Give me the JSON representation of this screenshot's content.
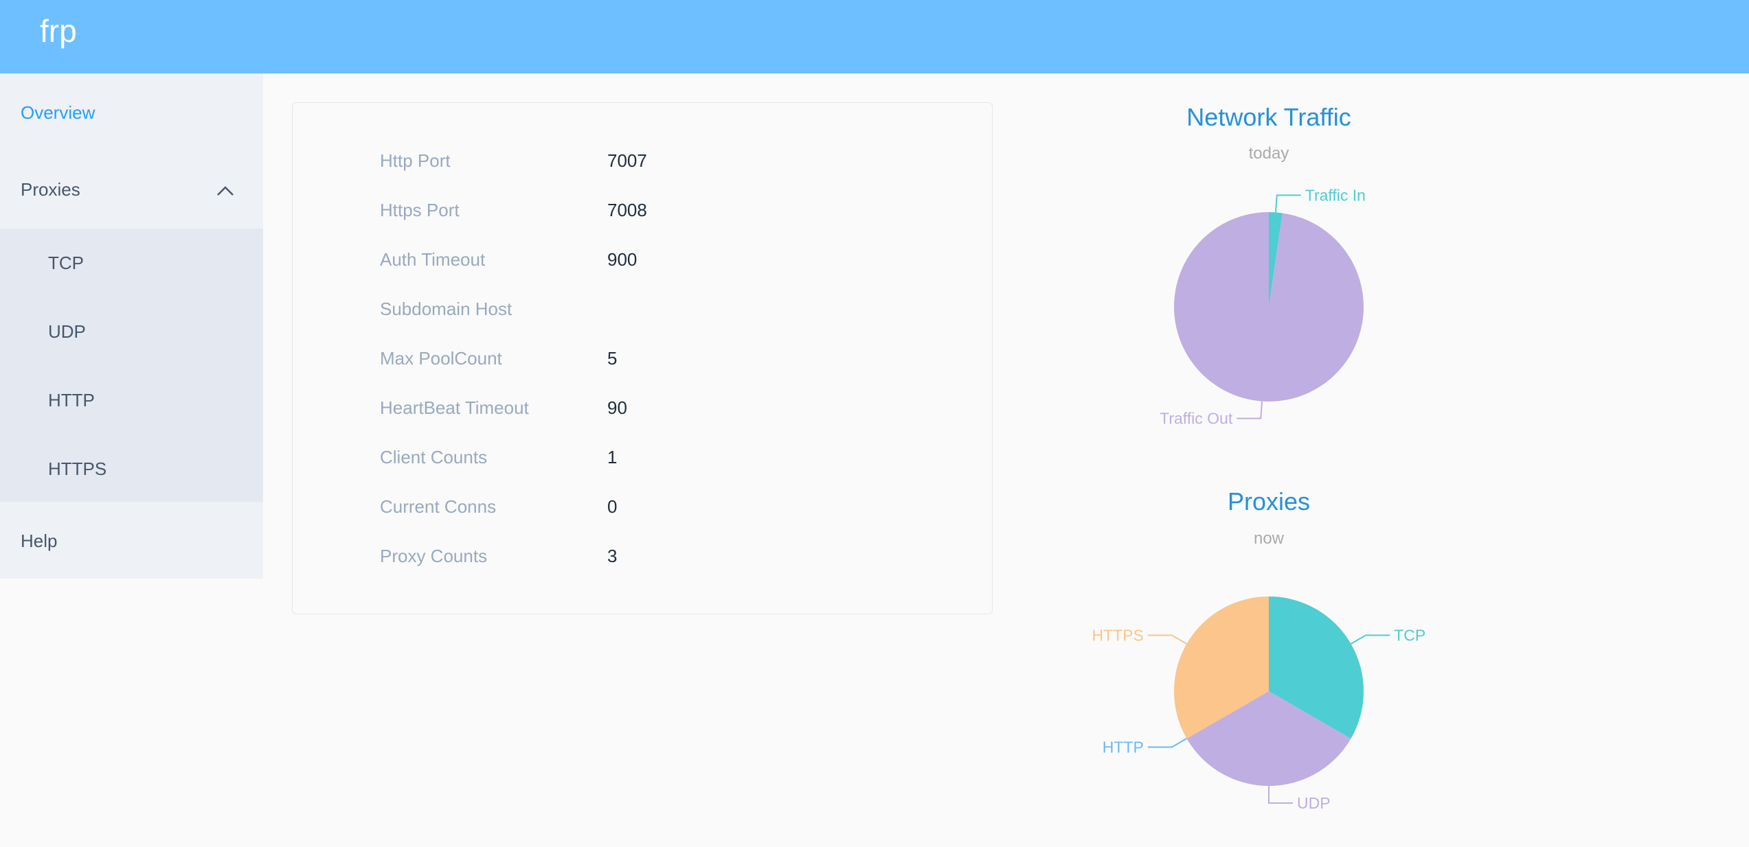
{
  "header": {
    "brand": "frp"
  },
  "sidebar": {
    "overview": "Overview",
    "proxies": "Proxies",
    "sub": [
      "TCP",
      "UDP",
      "HTTP",
      "HTTPS"
    ],
    "help": "Help"
  },
  "info": [
    {
      "label": "Http Port",
      "value": "7007"
    },
    {
      "label": "Https Port",
      "value": "7008"
    },
    {
      "label": "Auth Timeout",
      "value": "900"
    },
    {
      "label": "Subdomain Host",
      "value": ""
    },
    {
      "label": "Max PoolCount",
      "value": "5"
    },
    {
      "label": "HeartBeat Timeout",
      "value": "90"
    },
    {
      "label": "Client Counts",
      "value": "1"
    },
    {
      "label": "Current Conns",
      "value": "0"
    },
    {
      "label": "Proxy Counts",
      "value": "3"
    }
  ],
  "chart_data": [
    {
      "type": "pie",
      "title": "Network Traffic",
      "subtitle": "today",
      "series": [
        {
          "name": "Traffic In",
          "value": 2.3,
          "color": "#4ecdd2"
        },
        {
          "name": "Traffic Out",
          "value": 97.7,
          "color": "#bfaee2"
        }
      ]
    },
    {
      "type": "pie",
      "title": "Proxies",
      "subtitle": "now",
      "series": [
        {
          "name": "TCP",
          "value": 1,
          "color": "#4ecdd2"
        },
        {
          "name": "UDP",
          "value": 1,
          "color": "#bfaee2"
        },
        {
          "name": "HTTP",
          "value": 0,
          "color": "#6cb9f2"
        },
        {
          "name": "HTTPS",
          "value": 1,
          "color": "#fbc58b"
        }
      ]
    }
  ]
}
